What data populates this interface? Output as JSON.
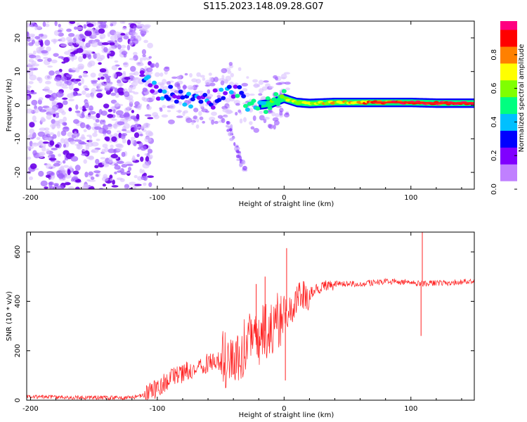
{
  "title": "S115.2023.148.09.28.G07",
  "chart_data": [
    {
      "type": "heatmap",
      "name": "spectrogram",
      "xlabel": "Height of straight line (km)",
      "ylabel": "Frequency (Hz)",
      "xlim": [
        -203,
        150
      ],
      "ylim": [
        -25,
        25
      ],
      "xticks": [
        -200,
        -100,
        0,
        100
      ],
      "yticks": [
        -20,
        -10,
        0,
        10,
        20
      ],
      "colorbar": {
        "label": "Normalized spectral amplitude",
        "ticks": [
          0.0,
          0.2,
          0.4,
          0.6,
          0.8
        ],
        "range": [
          0,
          1
        ],
        "colors": [
          "#ffffff",
          "#c080ff",
          "#8000ff",
          "#0000ff",
          "#00c0ff",
          "#00ff80",
          "#80ff00",
          "#ffff00",
          "#ff8000",
          "#ff0000",
          "#ff0080"
        ]
      },
      "ridge": {
        "x": [
          -110,
          -100,
          -90,
          -80,
          -70,
          -60,
          -50,
          -40,
          -30,
          -20,
          -10,
          0,
          10,
          20,
          40,
          60,
          80,
          100,
          120,
          150
        ],
        "y": [
          8,
          4,
          3,
          2.5,
          1.5,
          1,
          3,
          5,
          1,
          0,
          0.5,
          2,
          0.8,
          0.5,
          0.8,
          0.8,
          0.8,
          0.8,
          0.6,
          0.6
        ],
        "amplitude": [
          0.35,
          0.3,
          0.25,
          0.3,
          0.3,
          0.3,
          0.3,
          0.35,
          0.4,
          0.45,
          0.5,
          0.55,
          0.6,
          0.65,
          0.7,
          0.75,
          0.85,
          0.9,
          0.95,
          0.95
        ]
      },
      "noise_region": {
        "x": [
          -203,
          -110
        ],
        "y": [
          -25,
          25
        ]
      },
      "secondary_branch": {
        "x": [
          -45,
          -30
        ],
        "y": [
          -5,
          -20
        ]
      }
    },
    {
      "type": "line",
      "name": "snr",
      "xlabel": "Height of straight line (km)",
      "ylabel": "SNR (10 * v/v)",
      "xlim": [
        -203,
        150
      ],
      "ylim": [
        0,
        680
      ],
      "xticks": [
        -200,
        -100,
        0,
        100
      ],
      "yticks": [
        0,
        200,
        400,
        600
      ],
      "color": "#ff2020",
      "x": [
        -203,
        -180,
        -160,
        -140,
        -120,
        -110,
        -100,
        -90,
        -80,
        -70,
        -60,
        -50,
        -40,
        -30,
        -20,
        -10,
        0,
        10,
        20,
        30,
        40,
        50,
        60,
        70,
        80,
        90,
        100,
        110,
        120,
        130,
        140,
        150
      ],
      "y": [
        15,
        12,
        10,
        10,
        10,
        20,
        50,
        90,
        110,
        130,
        150,
        160,
        180,
        220,
        260,
        300,
        350,
        400,
        430,
        460,
        470,
        470,
        470,
        475,
        480,
        480,
        475,
        470,
        475,
        475,
        480,
        480
      ],
      "spikes": [
        {
          "x": 2,
          "y": 615
        },
        {
          "x": 1,
          "y": 80
        },
        {
          "x": -22,
          "y": 470
        },
        {
          "x": -15,
          "y": 500
        },
        {
          "x": 109,
          "y": 680
        },
        {
          "x": 108,
          "y": 260
        }
      ]
    }
  ]
}
